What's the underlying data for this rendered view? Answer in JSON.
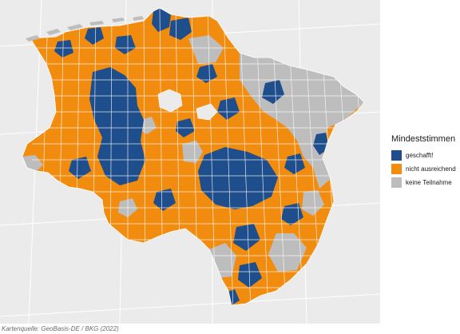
{
  "legend": {
    "title": "Mindeststimmen",
    "items": [
      {
        "label": "geschafft!",
        "color": "#1f4e8c"
      },
      {
        "label": "nicht ausreichend",
        "color": "#f28c0f"
      },
      {
        "label": "keine Teilnahme",
        "color": "#bdbdbd"
      }
    ]
  },
  "caption": "Kartenquelle: GeoBasis-DE / BKG (2022)",
  "colors": {
    "background": "#ebebeb",
    "graticule": "#ffffff",
    "border": "#ffffff"
  }
}
